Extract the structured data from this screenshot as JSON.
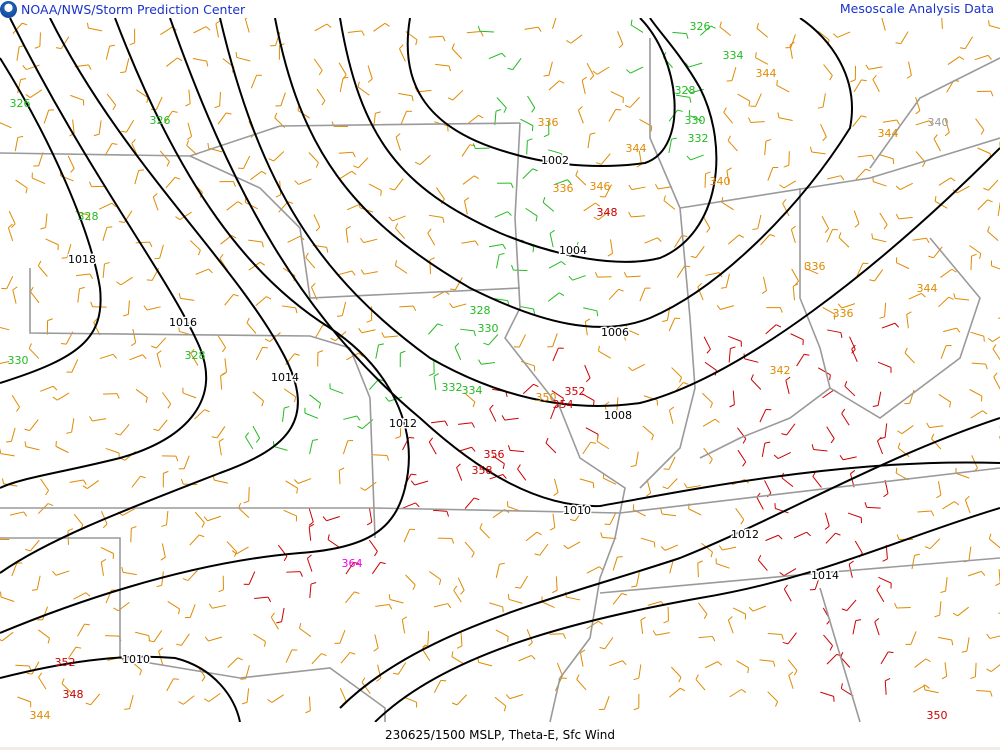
{
  "header": {
    "title": "NOAA/NWS/Storm Prediction Center",
    "product": "Mesoscale Analysis Data",
    "logo": "noaa-logo"
  },
  "footer": {
    "caption": "230625/1500 MSLP, Theta-E, Sfc Wind"
  },
  "colors": {
    "isobar": "#000000",
    "border": "#9a9a9a",
    "thetae_low": "#22bb22",
    "thetae_mid": "#e08a00",
    "thetae_high": "#cc0000",
    "thetae_max": "#ee00ee",
    "header_text": "#1a32c8"
  },
  "isobar_labels": [
    "1002",
    "1004",
    "1006",
    "1008",
    "1010",
    "1012",
    "1012",
    "1014",
    "1014",
    "1016",
    "1018",
    "1010"
  ],
  "thetae_labels": [
    {
      "v": "326",
      "c": "low"
    },
    {
      "v": "326",
      "c": "low"
    },
    {
      "v": "328",
      "c": "low"
    },
    {
      "v": "330",
      "c": "low"
    },
    {
      "v": "328",
      "c": "low"
    },
    {
      "v": "328",
      "c": "low"
    },
    {
      "v": "330",
      "c": "low"
    },
    {
      "v": "332",
      "c": "low"
    },
    {
      "v": "334",
      "c": "low"
    },
    {
      "v": "326",
      "c": "low"
    },
    {
      "v": "334",
      "c": "low"
    },
    {
      "v": "328",
      "c": "low"
    },
    {
      "v": "330",
      "c": "low"
    },
    {
      "v": "332",
      "c": "low"
    },
    {
      "v": "336",
      "c": "mid"
    },
    {
      "v": "344",
      "c": "mid"
    },
    {
      "v": "336",
      "c": "mid"
    },
    {
      "v": "346",
      "c": "mid"
    },
    {
      "v": "340",
      "c": "mid"
    },
    {
      "v": "344",
      "c": "mid"
    },
    {
      "v": "344",
      "c": "mid"
    },
    {
      "v": "336",
      "c": "mid"
    },
    {
      "v": "336",
      "c": "mid"
    },
    {
      "v": "344",
      "c": "mid"
    },
    {
      "v": "342",
      "c": "mid"
    },
    {
      "v": "350",
      "c": "mid"
    },
    {
      "v": "344",
      "c": "mid"
    },
    {
      "v": "348",
      "c": "high"
    },
    {
      "v": "352",
      "c": "high"
    },
    {
      "v": "354",
      "c": "high"
    },
    {
      "v": "356",
      "c": "high"
    },
    {
      "v": "358",
      "c": "high"
    },
    {
      "v": "352",
      "c": "high"
    },
    {
      "v": "348",
      "c": "high"
    },
    {
      "v": "350",
      "c": "high"
    },
    {
      "v": "364",
      "c": "max"
    },
    {
      "v": "340",
      "c": "gray"
    }
  ]
}
